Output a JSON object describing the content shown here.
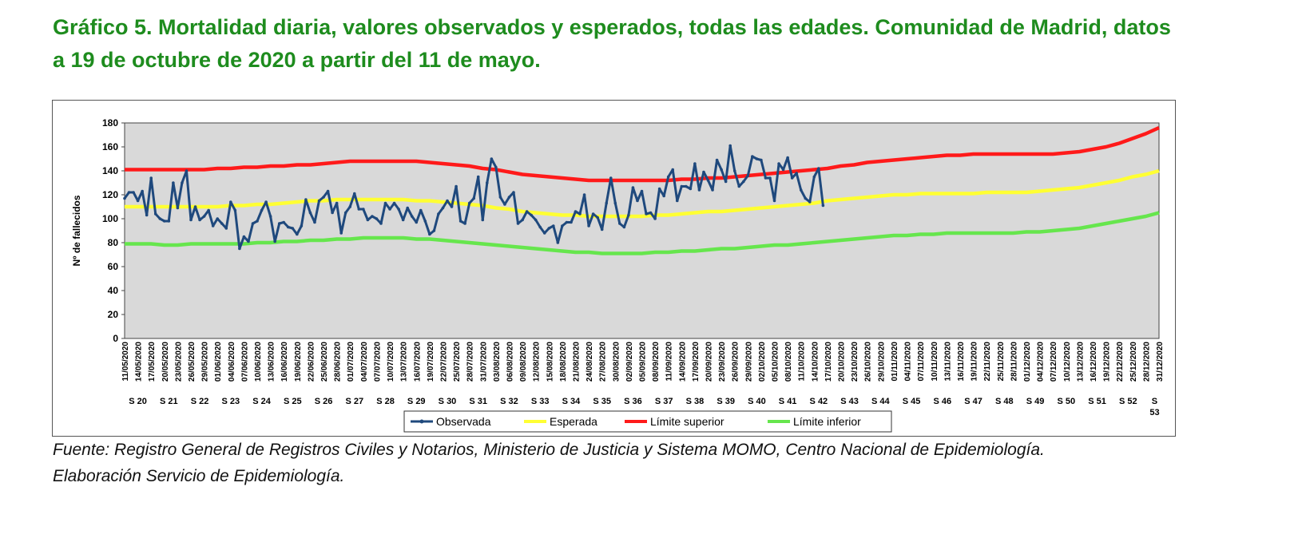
{
  "title": "Gráfico 5. Mortalidad diaria, valores observados y esperados, todas las edades. Comunidad de Madrid, datos a 19 de octubre de 2020 a partir del 11 de mayo.",
  "source_line1": "Fuente: Registro General de Registros Civiles y Notarios, Ministerio de Justicia y Sistema MOMO, Centro Nacional de Epidemiología.",
  "source_line2": "Elaboración Servicio de Epidemiología.",
  "chart_data": {
    "type": "line",
    "ylabel": "Nº de fallecidos",
    "ylim": [
      0,
      180
    ],
    "yticks": [
      0,
      20,
      40,
      60,
      80,
      100,
      120,
      140,
      160,
      180
    ],
    "grid": false,
    "legend_position": "bottom",
    "x_start": "11/05/2020",
    "x_end": "31/12/2020",
    "x_tick_labels": [
      "11/05/2020",
      "14/05/2020",
      "17/05/2020",
      "20/05/2020",
      "23/05/2020",
      "26/05/2020",
      "29/05/2020",
      "01/06/2020",
      "04/06/2020",
      "07/06/2020",
      "10/06/2020",
      "13/06/2020",
      "16/06/2020",
      "19/06/2020",
      "22/06/2020",
      "25/06/2020",
      "28/06/2020",
      "01/07/2020",
      "04/07/2020",
      "07/07/2020",
      "10/07/2020",
      "13/07/2020",
      "16/07/2020",
      "19/07/2020",
      "22/07/2020",
      "25/07/2020",
      "28/07/2020",
      "31/07/2020",
      "03/08/2020",
      "06/08/2020",
      "09/08/2020",
      "12/08/2020",
      "15/08/2020",
      "18/08/2020",
      "21/08/2020",
      "24/08/2020",
      "27/08/2020",
      "30/08/2020",
      "02/09/2020",
      "05/09/2020",
      "08/09/2020",
      "11/09/2020",
      "14/09/2020",
      "17/09/2020",
      "20/09/2020",
      "23/09/2020",
      "26/09/2020",
      "29/09/2020",
      "02/10/2020",
      "05/10/2020",
      "08/10/2020",
      "11/10/2020",
      "14/10/2020",
      "17/10/2020",
      "20/10/2020",
      "23/10/2020",
      "26/10/2020",
      "29/10/2020",
      "01/11/2020",
      "04/11/2020",
      "07/11/2020",
      "10/11/2020",
      "13/11/2020",
      "16/11/2020",
      "19/11/2020",
      "22/11/2020",
      "25/11/2020",
      "28/11/2020",
      "01/12/2020",
      "04/12/2020",
      "07/12/2020",
      "10/12/2020",
      "13/12/2020",
      "16/12/2020",
      "19/12/2020",
      "22/12/2020",
      "25/12/2020",
      "28/12/2020",
      "31/12/2020"
    ],
    "week_labels": [
      "S 20",
      "S 21",
      "S 22",
      "S 23",
      "S 24",
      "S 25",
      "S 26",
      "S 27",
      "S 28",
      "S 29",
      "S 30",
      "S 31",
      "S 32",
      "S 33",
      "S 34",
      "S 35",
      "S 36",
      "S 37",
      "S 38",
      "S 39",
      "S 40",
      "S 41",
      "S 42",
      "S 43",
      "S 44",
      "S 45",
      "S 46",
      "S 47",
      "S 48",
      "S 49",
      "S 50",
      "S 51",
      "S 52",
      "S 53"
    ],
    "series": [
      {
        "name": "Observada",
        "color": "#1f497d",
        "step_days": 1,
        "values": [
          117,
          122,
          122,
          115,
          123,
          103,
          134,
          104,
          100,
          98,
          98,
          130,
          109,
          130,
          140,
          99,
          110,
          99,
          102,
          107,
          94,
          100,
          96,
          92,
          114,
          107,
          75,
          85,
          81,
          96,
          98,
          107,
          114,
          102,
          81,
          96,
          97,
          93,
          92,
          87,
          94,
          116,
          105,
          97,
          115,
          118,
          123,
          105,
          113,
          88,
          105,
          110,
          121,
          108,
          108,
          99,
          102,
          100,
          96,
          113,
          108,
          113,
          108,
          99,
          109,
          102,
          97,
          107,
          98,
          87,
          90,
          104,
          109,
          115,
          110,
          127,
          98,
          96,
          113,
          117,
          135,
          99,
          130,
          150,
          143,
          118,
          112,
          118,
          122,
          96,
          99,
          106,
          103,
          99,
          93,
          88,
          92,
          94,
          80,
          94,
          97,
          97,
          106,
          104,
          120,
          94,
          104,
          101,
          91,
          113,
          134,
          113,
          96,
          93,
          103,
          126,
          115,
          123,
          104,
          105,
          100,
          125,
          119,
          135,
          141,
          115,
          127,
          127,
          125,
          146,
          124,
          139,
          132,
          124,
          149,
          141,
          131,
          161,
          140,
          127,
          131,
          136,
          152,
          150,
          149,
          134,
          134,
          115,
          146,
          141,
          151,
          134,
          138,
          124,
          117,
          114,
          135,
          142,
          111
        ]
      },
      {
        "name": "Esperada",
        "color": "#ffff33",
        "step_days": 3,
        "values": [
          110,
          110,
          110,
          110,
          110,
          110,
          110,
          110,
          111,
          111,
          112,
          112,
          113,
          114,
          115,
          115,
          116,
          116,
          116,
          116,
          116,
          116,
          115,
          115,
          114,
          113,
          112,
          111,
          109,
          108,
          106,
          105,
          104,
          103,
          103,
          102,
          102,
          102,
          102,
          102,
          103,
          103,
          104,
          105,
          106,
          106,
          107,
          108,
          109,
          110,
          111,
          112,
          113,
          115,
          116,
          117,
          118,
          119,
          120,
          120,
          121,
          121,
          121,
          121,
          121,
          122,
          122,
          122,
          122,
          123,
          124,
          125,
          126,
          128,
          130,
          132,
          135,
          137,
          140
        ]
      },
      {
        "name": "Límite superior",
        "color": "#ff1a1a",
        "step_days": 3,
        "values": [
          141,
          141,
          141,
          141,
          141,
          141,
          141,
          142,
          142,
          143,
          143,
          144,
          144,
          145,
          145,
          146,
          147,
          148,
          148,
          148,
          148,
          148,
          148,
          147,
          146,
          145,
          144,
          142,
          141,
          139,
          137,
          136,
          135,
          134,
          133,
          132,
          132,
          132,
          132,
          132,
          132,
          132,
          133,
          133,
          134,
          134,
          135,
          136,
          137,
          138,
          139,
          140,
          141,
          142,
          144,
          145,
          147,
          148,
          149,
          150,
          151,
          152,
          153,
          153,
          154,
          154,
          154,
          154,
          154,
          154,
          154,
          155,
          156,
          158,
          160,
          163,
          167,
          171,
          176
        ]
      },
      {
        "name": "Límite inferior",
        "color": "#66e64d",
        "step_days": 3,
        "values": [
          79,
          79,
          79,
          78,
          78,
          79,
          79,
          79,
          79,
          79,
          80,
          80,
          81,
          81,
          82,
          82,
          83,
          83,
          84,
          84,
          84,
          84,
          83,
          83,
          82,
          81,
          80,
          79,
          78,
          77,
          76,
          75,
          74,
          73,
          72,
          72,
          71,
          71,
          71,
          71,
          72,
          72,
          73,
          73,
          74,
          75,
          75,
          76,
          77,
          78,
          78,
          79,
          80,
          81,
          82,
          83,
          84,
          85,
          86,
          86,
          87,
          87,
          88,
          88,
          88,
          88,
          88,
          88,
          89,
          89,
          90,
          91,
          92,
          94,
          96,
          98,
          100,
          102,
          105
        ]
      }
    ]
  }
}
